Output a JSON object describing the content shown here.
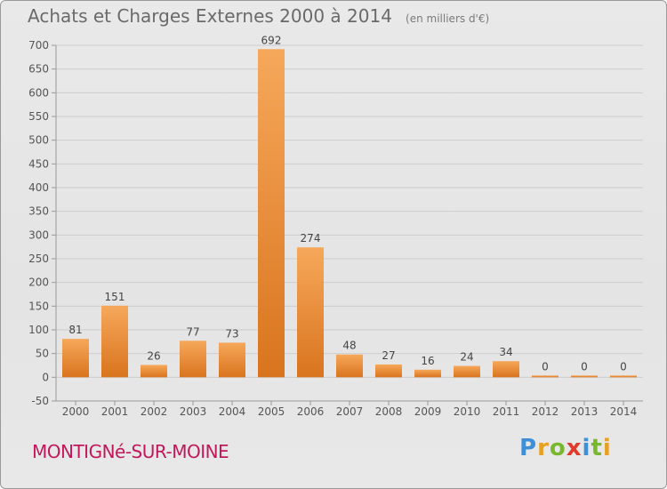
{
  "header": {
    "title": "Achats et Charges Externes 2000 à 2014",
    "subtitle": "(en milliers d'€)"
  },
  "footer": {
    "commune": "MONTIGNé-SUR-MOINE"
  },
  "logo": {
    "letters": [
      "P",
      "r",
      "o",
      "x",
      "i",
      "t",
      "i"
    ],
    "colors": [
      "#3f8fd8",
      "#e8a020",
      "#79b82c",
      "#e03a2a",
      "#3f8fd8",
      "#79b82c",
      "#e8a020"
    ]
  },
  "colors": {
    "bar_top": "#f6a85a",
    "bar_bottom": "#d9741e",
    "grid": "#cccccc",
    "axis_text": "#555555"
  },
  "chart_data": {
    "type": "bar",
    "categories": [
      "2000",
      "2001",
      "2002",
      "2003",
      "2004",
      "2005",
      "2006",
      "2007",
      "2008",
      "2009",
      "2010",
      "2011",
      "2012",
      "2013",
      "2014"
    ],
    "values": [
      81,
      151,
      26,
      77,
      73,
      692,
      274,
      48,
      27,
      16,
      24,
      34,
      0,
      0,
      0
    ],
    "data_labels": [
      "81",
      "151",
      "26",
      "77",
      "73",
      "692",
      "274",
      "48",
      "27",
      "16",
      "24",
      "34",
      "0",
      "0",
      "0"
    ],
    "ylim": [
      -50,
      700
    ],
    "yticks": [
      -50,
      0,
      50,
      100,
      150,
      200,
      250,
      300,
      350,
      400,
      450,
      500,
      550,
      600,
      650,
      700
    ],
    "ytick_labels": [
      "-50",
      "0",
      "50",
      "100",
      "150",
      "200",
      "250",
      "300",
      "350",
      "400",
      "450",
      "500",
      "550",
      "600",
      "650",
      "700"
    ],
    "grid": true,
    "legend": "none"
  }
}
